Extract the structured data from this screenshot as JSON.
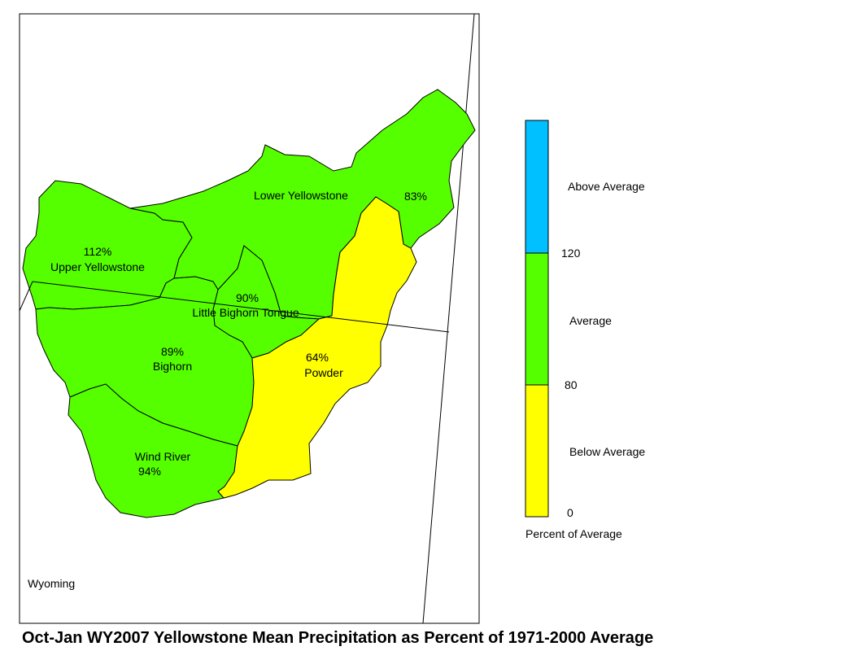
{
  "title": "Oct-Jan WY2007 Yellowstone Mean Precipitation as Percent of 1971-2000 Average",
  "state_label": "Wyoming",
  "colors": {
    "above": "#00c0ff",
    "average": "#55ff00",
    "below": "#ffff00",
    "outline": "#000000"
  },
  "basins": [
    {
      "id": "upper-yellowstone",
      "name": "Upper Yellowstone",
      "percent": "112%",
      "category": "average"
    },
    {
      "id": "lower-yellowstone",
      "name": "Lower Yellowstone",
      "percent": "83%",
      "category": "average"
    },
    {
      "id": "little-bighorn-tongue",
      "name": "Little Bighorn Tongue",
      "percent": "90%",
      "category": "average"
    },
    {
      "id": "bighorn",
      "name": "Bighorn",
      "percent": "89%",
      "category": "average"
    },
    {
      "id": "powder",
      "name": "Powder",
      "percent": "64%",
      "category": "below"
    },
    {
      "id": "wind-river",
      "name": "Wind River",
      "percent": "94%",
      "category": "average"
    }
  ],
  "legend": {
    "above_label": "Above Average",
    "average_label": "Average",
    "below_label": "Below Average",
    "tick_120": "120",
    "tick_80": "80",
    "tick_0": "0",
    "axis_label": "Percent of Average",
    "breaks": [
      0,
      80,
      120
    ]
  }
}
